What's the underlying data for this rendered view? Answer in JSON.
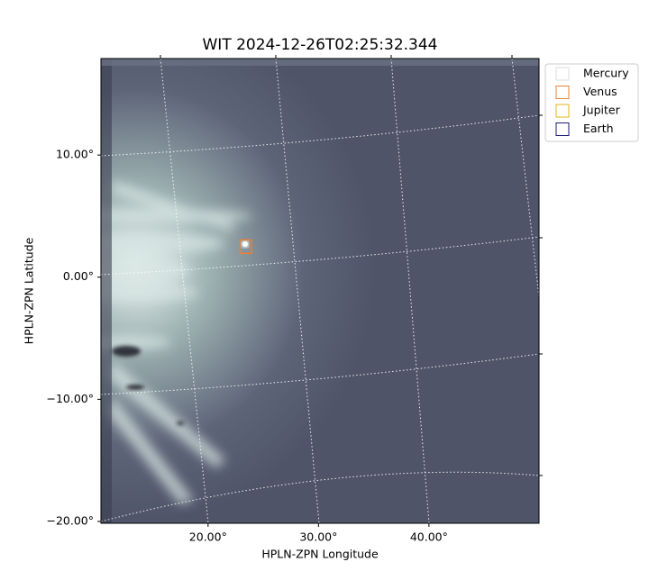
{
  "chart_data": {
    "type": "image",
    "title": "WIT 2024-12-26T02:25:32.344",
    "xlabel": "HPLN-ZPN Longitude",
    "ylabel": "HPLN-ZPN Latitude",
    "xlim": [
      10.3,
      49.97
    ],
    "ylim": [
      -20.15,
      17.9
    ],
    "xticks": [
      {
        "value": 20,
        "label": "20.00°"
      },
      {
        "value": 30,
        "label": "30.00°"
      },
      {
        "value": 40,
        "label": "40.00°"
      }
    ],
    "yticks": [
      {
        "value": -20,
        "label": "−20.00°"
      },
      {
        "value": -10,
        "label": "−10.00°"
      },
      {
        "value": 0,
        "label": "0.00°"
      },
      {
        "value": 10,
        "label": "10.00°"
      }
    ],
    "legend": "upper left outside",
    "series": [
      {
        "name": "Mercury",
        "color": "#dddddd"
      },
      {
        "name": "Venus",
        "color": "#e8803a",
        "x": [
          23.4
        ],
        "values": [
          2.5
        ]
      },
      {
        "name": "Jupiter",
        "color": "#e8b21a"
      },
      {
        "name": "Earth",
        "color": "#1a1a7a"
      }
    ]
  }
}
